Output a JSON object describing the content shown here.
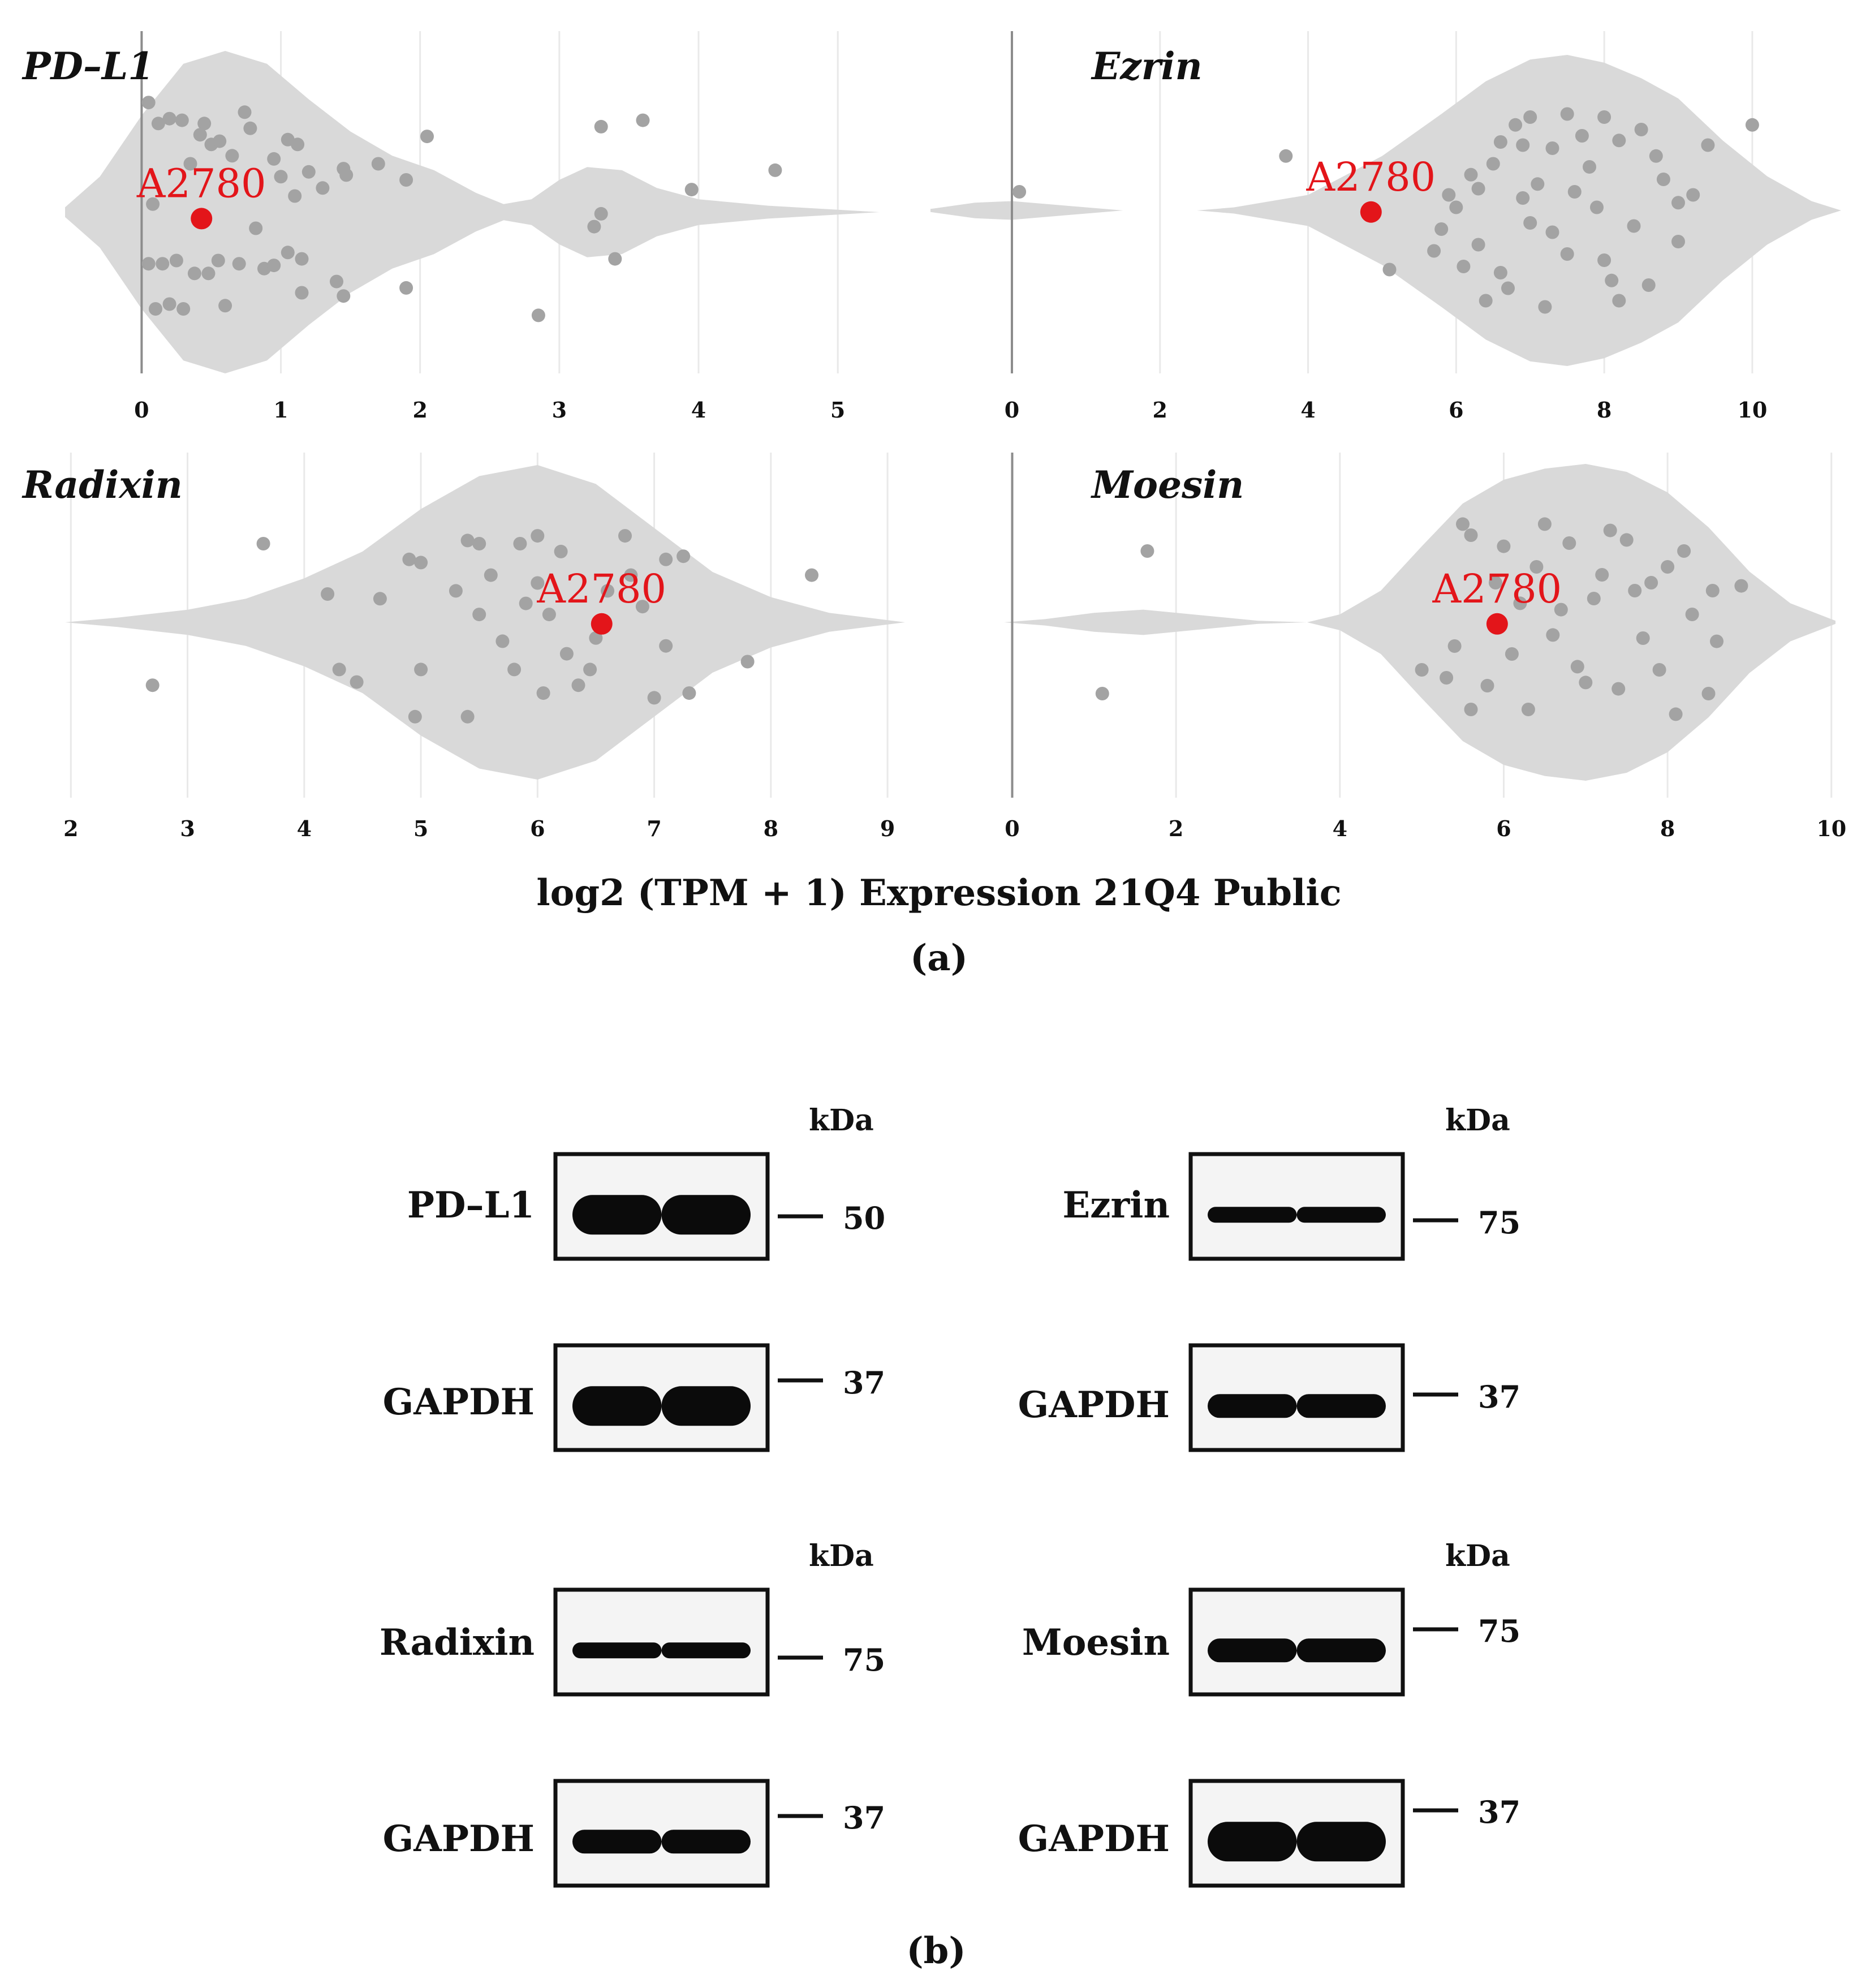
{
  "figure": {
    "panel_a_label": "(a)",
    "panel_b_label": "(b)",
    "shared_xlabel": "log2 (TPM + 1) Expression 21Q4 Public",
    "highlight_label": "A2780",
    "colors": {
      "violin": "#d9d9d9",
      "points": "#a3a3a3",
      "highlight": "#e3151a",
      "grid": "#e9e9e9"
    }
  },
  "chart_data": [
    {
      "type": "scatter",
      "title": "PD–L1",
      "xlim": [
        -0.55,
        5.3
      ],
      "xticks": [
        "0",
        "1",
        "2",
        "3",
        "4",
        "5"
      ],
      "grid": "vertical",
      "violin_profile": [
        [
          -0.55,
          0.03
        ],
        [
          -0.3,
          0.22
        ],
        [
          0.0,
          0.6
        ],
        [
          0.3,
          0.92
        ],
        [
          0.6,
          1.0
        ],
        [
          0.9,
          0.92
        ],
        [
          1.2,
          0.7
        ],
        [
          1.5,
          0.5
        ],
        [
          1.8,
          0.35
        ],
        [
          2.1,
          0.26
        ],
        [
          2.4,
          0.12
        ],
        [
          2.6,
          0.05
        ],
        [
          2.8,
          0.08
        ],
        [
          3.0,
          0.2
        ],
        [
          3.2,
          0.28
        ],
        [
          3.45,
          0.26
        ],
        [
          3.7,
          0.15
        ],
        [
          4.0,
          0.08
        ],
        [
          4.5,
          0.04
        ],
        [
          5.3,
          0.0
        ]
      ],
      "points": [
        [
          0.05,
          0.68
        ],
        [
          0.12,
          0.55
        ],
        [
          0.2,
          0.58
        ],
        [
          0.29,
          0.57
        ],
        [
          0.42,
          0.48
        ],
        [
          0.5,
          0.42
        ],
        [
          0.56,
          0.44
        ],
        [
          0.74,
          0.62
        ],
        [
          0.78,
          0.52
        ],
        [
          0.95,
          0.33
        ],
        [
          1.05,
          0.45
        ],
        [
          1.12,
          0.42
        ],
        [
          1.45,
          0.27
        ],
        [
          1.47,
          0.23
        ],
        [
          1.9,
          0.2
        ],
        [
          2.05,
          0.47
        ],
        [
          3.3,
          0.53
        ],
        [
          3.6,
          0.57
        ],
        [
          4.55,
          0.26
        ],
        [
          0.08,
          0.05
        ],
        [
          0.05,
          -0.32
        ],
        [
          0.15,
          -0.32
        ],
        [
          0.25,
          -0.3
        ],
        [
          0.38,
          -0.38
        ],
        [
          0.48,
          -0.38
        ],
        [
          0.55,
          -0.3
        ],
        [
          0.88,
          -0.35
        ],
        [
          1.05,
          -0.25
        ],
        [
          1.15,
          -0.29
        ],
        [
          1.4,
          -0.43
        ],
        [
          1.45,
          -0.52
        ],
        [
          1.9,
          -0.47
        ],
        [
          3.25,
          -0.09
        ],
        [
          3.3,
          -0.01
        ],
        [
          3.4,
          -0.29
        ],
        [
          2.85,
          -0.64
        ],
        [
          3.95,
          0.14
        ],
        [
          0.2,
          -0.57
        ],
        [
          0.1,
          -0.6
        ],
        [
          0.3,
          -0.6
        ],
        [
          0.6,
          -0.58
        ],
        [
          1.15,
          -0.5
        ],
        [
          0.7,
          -0.32
        ],
        [
          0.95,
          -0.33
        ],
        [
          0.82,
          -0.1
        ],
        [
          1.0,
          0.22
        ],
        [
          1.2,
          0.25
        ],
        [
          1.1,
          0.1
        ],
        [
          1.3,
          0.15
        ],
        [
          1.7,
          0.3
        ],
        [
          0.35,
          0.3
        ],
        [
          0.45,
          0.55
        ],
        [
          0.65,
          0.35
        ]
      ],
      "highlight": {
        "label": "A2780",
        "x": 0.43,
        "y": -0.04
      }
    },
    {
      "type": "scatter",
      "title": "Ezrin",
      "xlim": [
        -1.1,
        11.2
      ],
      "xticks": [
        "0",
        "2",
        "4",
        "6",
        "8",
        "10"
      ],
      "grid": "vertical",
      "violin_profile": [
        [
          -1.1,
          0.01
        ],
        [
          -0.5,
          0.05
        ],
        [
          0.0,
          0.06
        ],
        [
          0.5,
          0.04
        ],
        [
          1.5,
          0.0
        ],
        [
          2.0,
          0.0
        ],
        [
          2.5,
          0.0
        ],
        [
          3.0,
          0.02
        ],
        [
          4.0,
          0.1
        ],
        [
          5.0,
          0.35
        ],
        [
          5.8,
          0.62
        ],
        [
          6.4,
          0.83
        ],
        [
          7.0,
          0.97
        ],
        [
          7.5,
          1.0
        ],
        [
          8.0,
          0.95
        ],
        [
          8.5,
          0.85
        ],
        [
          9.0,
          0.72
        ],
        [
          9.6,
          0.45
        ],
        [
          10.2,
          0.22
        ],
        [
          10.8,
          0.06
        ],
        [
          11.2,
          0.0
        ]
      ],
      "points": [
        [
          0.1,
          0.12
        ],
        [
          3.7,
          0.35
        ],
        [
          5.1,
          -0.38
        ],
        [
          5.7,
          -0.26
        ],
        [
          5.9,
          0.1
        ],
        [
          6.0,
          0.02
        ],
        [
          6.2,
          0.23
        ],
        [
          6.3,
          0.14
        ],
        [
          6.6,
          0.44
        ],
        [
          6.8,
          0.55
        ],
        [
          7.0,
          0.6
        ],
        [
          7.3,
          0.4
        ],
        [
          7.5,
          0.62
        ],
        [
          7.8,
          0.28
        ],
        [
          8.2,
          0.45
        ],
        [
          8.5,
          0.52
        ],
        [
          8.7,
          0.35
        ],
        [
          9.0,
          0.05
        ],
        [
          9.4,
          0.42
        ],
        [
          10.0,
          0.55
        ],
        [
          6.1,
          -0.36
        ],
        [
          6.4,
          -0.58
        ],
        [
          6.7,
          -0.5
        ],
        [
          7.2,
          -0.62
        ],
        [
          7.5,
          -0.28
        ],
        [
          8.0,
          -0.32
        ],
        [
          8.2,
          -0.58
        ],
        [
          8.6,
          -0.48
        ],
        [
          9.0,
          -0.2
        ],
        [
          5.8,
          -0.12
        ],
        [
          6.9,
          0.08
        ],
        [
          7.6,
          0.12
        ],
        [
          8.8,
          0.2
        ],
        [
          6.5,
          0.3
        ],
        [
          7.1,
          0.17
        ],
        [
          7.9,
          0.02
        ],
        [
          8.4,
          -0.1
        ],
        [
          6.3,
          -0.22
        ],
        [
          7.3,
          -0.14
        ],
        [
          8.1,
          -0.45
        ],
        [
          6.6,
          -0.4
        ],
        [
          7.7,
          0.48
        ],
        [
          7.0,
          -0.08
        ],
        [
          9.2,
          0.1
        ],
        [
          8.0,
          0.6
        ],
        [
          6.9,
          0.42
        ]
      ],
      "highlight": {
        "label": "A2780",
        "x": 4.85,
        "y": -0.01
      }
    },
    {
      "type": "scatter",
      "title": "Radixin",
      "xlim": [
        1.95,
        9.15
      ],
      "xticks": [
        "2",
        "3",
        "4",
        "5",
        "6",
        "7",
        "8",
        "9"
      ],
      "grid": "vertical",
      "violin_profile": [
        [
          1.95,
          0.0
        ],
        [
          2.4,
          0.03
        ],
        [
          3.0,
          0.08
        ],
        [
          3.5,
          0.15
        ],
        [
          4.0,
          0.28
        ],
        [
          4.5,
          0.45
        ],
        [
          5.0,
          0.72
        ],
        [
          5.5,
          0.93
        ],
        [
          6.0,
          1.0
        ],
        [
          6.5,
          0.88
        ],
        [
          7.0,
          0.6
        ],
        [
          7.5,
          0.32
        ],
        [
          8.0,
          0.16
        ],
        [
          8.5,
          0.06
        ],
        [
          9.15,
          0.0
        ]
      ],
      "points": [
        [
          2.7,
          -0.4
        ],
        [
          3.65,
          0.5
        ],
        [
          4.2,
          0.18
        ],
        [
          4.3,
          -0.3
        ],
        [
          4.45,
          -0.38
        ],
        [
          4.65,
          0.15
        ],
        [
          4.9,
          0.4
        ],
        [
          5.0,
          0.38
        ],
        [
          5.0,
          -0.3
        ],
        [
          4.95,
          -0.6
        ],
        [
          5.4,
          0.52
        ],
        [
          5.5,
          0.5
        ],
        [
          5.6,
          0.3
        ],
        [
          5.85,
          0.5
        ],
        [
          6.0,
          0.55
        ],
        [
          6.2,
          0.45
        ],
        [
          6.75,
          0.55
        ],
        [
          7.1,
          0.4
        ],
        [
          7.25,
          0.42
        ],
        [
          7.3,
          -0.45
        ],
        [
          7.8,
          -0.25
        ],
        [
          8.35,
          0.3
        ],
        [
          5.4,
          -0.6
        ],
        [
          6.05,
          -0.45
        ],
        [
          6.35,
          -0.4
        ],
        [
          7.0,
          -0.48
        ],
        [
          5.9,
          0.12
        ],
        [
          6.1,
          0.05
        ],
        [
          6.6,
          0.2
        ],
        [
          5.7,
          -0.12
        ],
        [
          6.45,
          -0.3
        ],
        [
          5.5,
          0.05
        ],
        [
          6.9,
          0.1
        ],
        [
          7.1,
          -0.15
        ],
        [
          6.25,
          -0.2
        ],
        [
          5.3,
          0.2
        ],
        [
          6.8,
          0.3
        ],
        [
          5.8,
          -0.3
        ],
        [
          6.5,
          -0.1
        ],
        [
          6.0,
          0.25
        ]
      ],
      "highlight": {
        "label": "A2780",
        "x": 6.55,
        "y": -0.01
      }
    },
    {
      "type": "scatter",
      "title": "Moesin",
      "xlim": [
        -0.1,
        10.05
      ],
      "xticks": [
        "0",
        "2",
        "4",
        "6",
        "8",
        "10"
      ],
      "grid": "vertical",
      "violin_profile": [
        [
          -0.1,
          0.0
        ],
        [
          0.4,
          0.02
        ],
        [
          1.0,
          0.06
        ],
        [
          1.6,
          0.08
        ],
        [
          2.2,
          0.05
        ],
        [
          3.0,
          0.01
        ],
        [
          3.6,
          0.0
        ],
        [
          4.0,
          0.05
        ],
        [
          4.5,
          0.2
        ],
        [
          5.0,
          0.48
        ],
        [
          5.5,
          0.75
        ],
        [
          6.0,
          0.9
        ],
        [
          6.5,
          0.97
        ],
        [
          7.0,
          1.0
        ],
        [
          7.5,
          0.95
        ],
        [
          8.0,
          0.82
        ],
        [
          8.5,
          0.6
        ],
        [
          9.0,
          0.32
        ],
        [
          9.5,
          0.12
        ],
        [
          10.05,
          0.01
        ]
      ],
      "points": [
        [
          1.65,
          0.45
        ],
        [
          1.1,
          -0.45
        ],
        [
          5.5,
          0.62
        ],
        [
          5.6,
          0.55
        ],
        [
          6.0,
          0.48
        ],
        [
          6.5,
          0.62
        ],
        [
          6.8,
          0.5
        ],
        [
          7.3,
          0.58
        ],
        [
          7.5,
          0.52
        ],
        [
          7.8,
          0.25
        ],
        [
          8.2,
          0.45
        ],
        [
          8.55,
          0.2
        ],
        [
          8.9,
          0.23
        ],
        [
          6.2,
          0.12
        ],
        [
          6.7,
          0.08
        ],
        [
          7.1,
          0.15
        ],
        [
          5.0,
          -0.3
        ],
        [
          5.3,
          -0.35
        ],
        [
          5.6,
          -0.55
        ],
        [
          5.8,
          -0.4
        ],
        [
          6.3,
          -0.55
        ],
        [
          6.9,
          -0.28
        ],
        [
          7.4,
          -0.42
        ],
        [
          7.9,
          -0.3
        ],
        [
          8.1,
          -0.58
        ],
        [
          8.5,
          -0.45
        ],
        [
          7.0,
          -0.38
        ],
        [
          6.1,
          -0.2
        ],
        [
          5.4,
          -0.15
        ],
        [
          8.3,
          0.05
        ],
        [
          7.7,
          -0.1
        ],
        [
          6.6,
          -0.08
        ],
        [
          8.6,
          -0.12
        ],
        [
          5.9,
          0.25
        ],
        [
          7.2,
          0.3
        ],
        [
          8.0,
          0.35
        ],
        [
          6.4,
          0.35
        ],
        [
          7.6,
          0.2
        ]
      ],
      "highlight": {
        "label": "A2780",
        "x": 5.92,
        "y": -0.01
      }
    }
  ],
  "blots": [
    {
      "protein": "PD–L1",
      "kda_label": "kDa",
      "mw": "50",
      "mw_pos": "bottom",
      "band": "heavy"
    },
    {
      "protein": "GAPDH",
      "mw": "37",
      "mw_pos": "top",
      "band": "heavy"
    },
    {
      "protein": "Ezrin",
      "kda_label": "kDa",
      "mw": "75",
      "mw_pos": "bottom",
      "band": "thin"
    },
    {
      "protein": "GAPDH",
      "mw": "37",
      "mw_pos": "top",
      "band": "medium"
    },
    {
      "protein": "Radixin",
      "kda_label": "kDa",
      "mw": "75",
      "mw_pos": "bottom",
      "band": "thin"
    },
    {
      "protein": "GAPDH",
      "mw": "37",
      "mw_pos": "top",
      "band": "medium"
    },
    {
      "protein": "Moesin",
      "kda_label": "kDa",
      "mw": "75",
      "mw_pos": "top",
      "band": "medium"
    },
    {
      "protein": "GAPDH",
      "mw": "37",
      "mw_pos": "top",
      "band": "heavy"
    }
  ]
}
